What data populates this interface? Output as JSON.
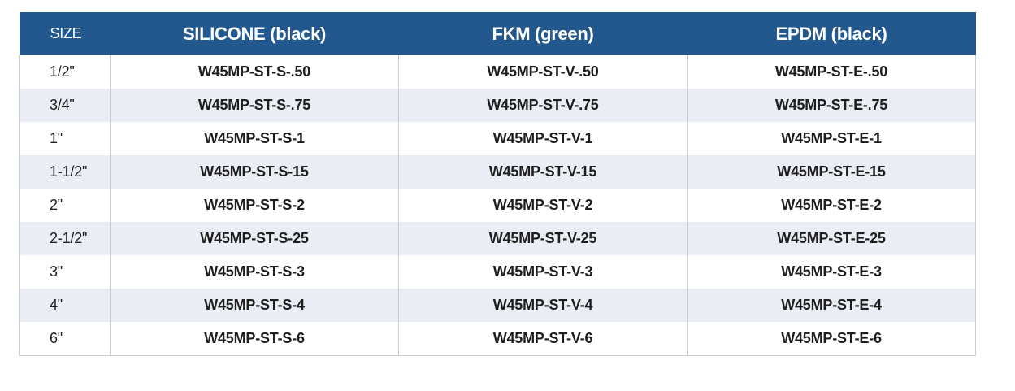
{
  "table": {
    "headers": [
      "SIZE",
      "SILICONE (black)",
      "FKM (green)",
      "EPDM (black)"
    ],
    "rows": [
      [
        "1/2\"",
        "W45MP-ST-S-.50",
        "W45MP-ST-V-.50",
        "W45MP-ST-E-.50"
      ],
      [
        "3/4\"",
        "W45MP-ST-S-.75",
        "W45MP-ST-V-.75",
        "W45MP-ST-E-.75"
      ],
      [
        "1\"",
        "W45MP-ST-S-1",
        "W45MP-ST-V-1",
        "W45MP-ST-E-1"
      ],
      [
        "1-1/2\"",
        "W45MP-ST-S-15",
        "W45MP-ST-V-15",
        "W45MP-ST-E-15"
      ],
      [
        "2\"",
        "W45MP-ST-S-2",
        "W45MP-ST-V-2",
        "W45MP-ST-E-2"
      ],
      [
        "2-1/2\"",
        "W45MP-ST-S-25",
        "W45MP-ST-V-25",
        "W45MP-ST-E-25"
      ],
      [
        "3\"",
        "W45MP-ST-S-3",
        "W45MP-ST-V-3",
        "W45MP-ST-E-3"
      ],
      [
        "4\"",
        "W45MP-ST-S-4",
        "W45MP-ST-V-4",
        "W45MP-ST-E-4"
      ],
      [
        "6\"",
        "W45MP-ST-S-6",
        "W45MP-ST-V-6",
        "W45MP-ST-E-6"
      ]
    ]
  },
  "colors": {
    "header_bg": "#23588f",
    "stripe_bg": "#eaedf3",
    "border": "#c9cdd3"
  }
}
